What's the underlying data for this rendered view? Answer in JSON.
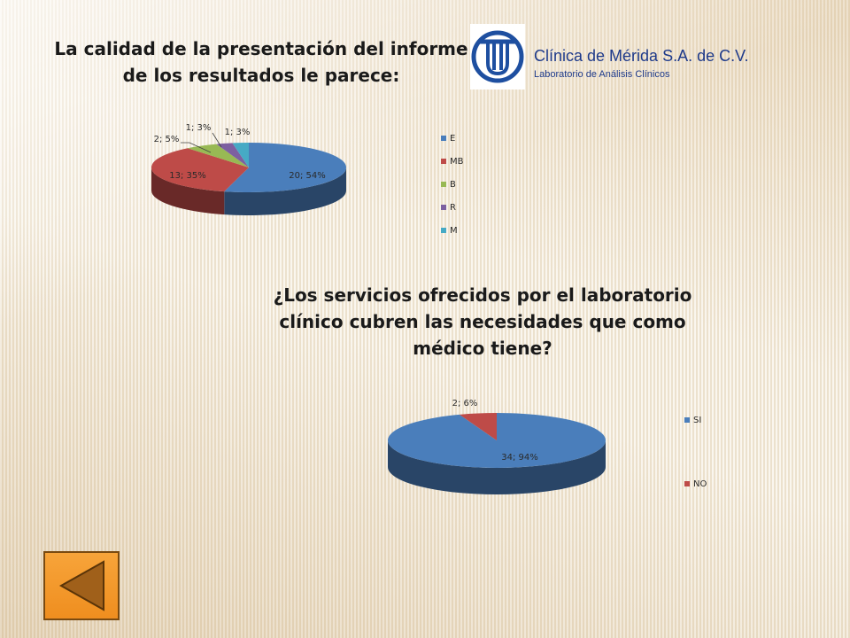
{
  "header": {
    "clinic_name": "Clínica de Mérida S.A. de C.V.",
    "clinic_subtitle": "Laboratorio  de Análisis Clínicos",
    "logo_icon": "clinic-logo-icon"
  },
  "chart_data": [
    {
      "type": "pie",
      "title_lines": [
        "La calidad de la presentación del informe",
        "de los resultados le parece:"
      ],
      "categories": [
        "E",
        "MB",
        "B",
        "R",
        "M"
      ],
      "values": [
        20,
        13,
        2,
        1,
        1
      ],
      "percents": [
        54,
        35,
        5,
        3,
        3
      ],
      "data_labels": [
        "20; 54%",
        "13; 35%",
        "2; 5%",
        "1; 3%",
        "1; 3%"
      ],
      "colors": [
        "#4a7ebb",
        "#be4b48",
        "#98b954",
        "#7d60a0",
        "#46aac5"
      ],
      "legend_position": "right",
      "three_d": true
    },
    {
      "type": "pie",
      "title_lines": [
        "¿Los servicios ofrecidos por el laboratorio",
        "clínico cubren las necesidades que como",
        "médico tiene?"
      ],
      "categories": [
        "SI",
        "NO"
      ],
      "values": [
        34,
        2
      ],
      "percents": [
        94,
        6
      ],
      "data_labels": [
        "34; 94%",
        "2; 6%"
      ],
      "colors": [
        "#4a7ebb",
        "#be4b48"
      ],
      "legend_position": "right",
      "three_d": true
    }
  ],
  "navigation": {
    "back_icon": "back-arrow-icon"
  }
}
